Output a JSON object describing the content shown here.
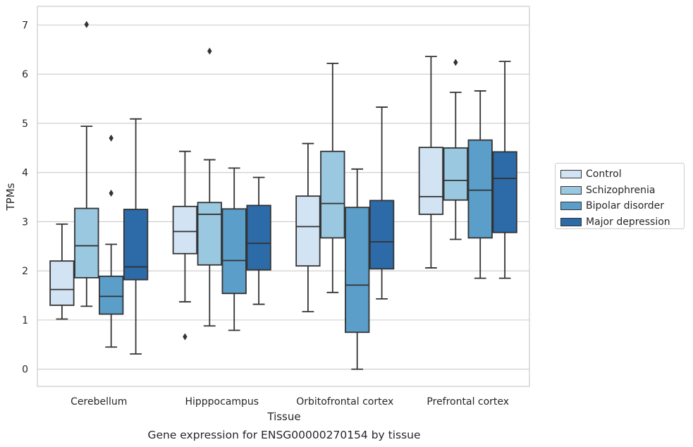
{
  "chart_data": {
    "type": "box",
    "title": "",
    "xlabel": "Tissue",
    "ylabel": "TPMs",
    "caption": "Gene expression for ENSG00000270154 by tissue",
    "ylim": [
      -0.35,
      7.38
    ],
    "yticks": [
      0,
      1,
      2,
      3,
      4,
      5,
      6,
      7
    ],
    "grid": "horizontal",
    "legend_position": "right",
    "categories": [
      "Cerebellum",
      "Hipppocampus",
      "Orbitofrontal cortex",
      "Prefrontal cortex"
    ],
    "series": [
      {
        "name": "Control",
        "color": "#d2e3f3",
        "boxes": [
          {
            "whislo": 1.02,
            "q1": 1.3,
            "median": 1.62,
            "q3": 2.2,
            "whishi": 2.95,
            "fliers": []
          },
          {
            "whislo": 1.37,
            "q1": 2.35,
            "median": 2.8,
            "q3": 3.31,
            "whishi": 4.43,
            "fliers": [
              0.66
            ]
          },
          {
            "whislo": 1.17,
            "q1": 2.1,
            "median": 2.9,
            "q3": 3.52,
            "whishi": 4.59,
            "fliers": []
          },
          {
            "whislo": 2.06,
            "q1": 3.15,
            "median": 3.51,
            "q3": 4.51,
            "whishi": 6.36,
            "fliers": []
          }
        ]
      },
      {
        "name": "Schizophrenia",
        "color": "#9ac8e0",
        "boxes": [
          {
            "whislo": 1.28,
            "q1": 1.86,
            "median": 2.51,
            "q3": 3.27,
            "whishi": 4.94,
            "fliers": [
              7.01
            ]
          },
          {
            "whislo": 0.88,
            "q1": 2.12,
            "median": 3.15,
            "q3": 3.39,
            "whishi": 4.26,
            "fliers": [
              6.47
            ]
          },
          {
            "whislo": 1.56,
            "q1": 2.67,
            "median": 3.37,
            "q3": 4.43,
            "whishi": 6.22,
            "fliers": []
          },
          {
            "whislo": 2.64,
            "q1": 3.44,
            "median": 3.84,
            "q3": 4.5,
            "whishi": 5.63,
            "fliers": [
              6.24
            ]
          }
        ]
      },
      {
        "name": "Bipolar disorder",
        "color": "#5a9ec9",
        "boxes": [
          {
            "whislo": 0.45,
            "q1": 1.12,
            "median": 1.48,
            "q3": 1.89,
            "whishi": 2.54,
            "fliers": [
              3.58,
              4.7
            ]
          },
          {
            "whislo": 0.79,
            "q1": 1.54,
            "median": 2.21,
            "q3": 3.26,
            "whishi": 4.09,
            "fliers": []
          },
          {
            "whislo": 0.0,
            "q1": 0.75,
            "median": 1.71,
            "q3": 3.29,
            "whishi": 4.07,
            "fliers": []
          },
          {
            "whislo": 1.85,
            "q1": 2.67,
            "median": 3.64,
            "q3": 4.66,
            "whishi": 5.66,
            "fliers": []
          }
        ]
      },
      {
        "name": "Major depression",
        "color": "#2c6aa8",
        "boxes": [
          {
            "whislo": 0.31,
            "q1": 1.82,
            "median": 2.08,
            "q3": 3.25,
            "whishi": 5.09,
            "fliers": []
          },
          {
            "whislo": 1.32,
            "q1": 2.02,
            "median": 2.56,
            "q3": 3.33,
            "whishi": 3.9,
            "fliers": []
          },
          {
            "whislo": 1.43,
            "q1": 2.04,
            "median": 2.59,
            "q3": 3.43,
            "whishi": 5.33,
            "fliers": []
          },
          {
            "whislo": 1.85,
            "q1": 2.78,
            "median": 3.88,
            "q3": 4.42,
            "whishi": 6.26,
            "fliers": []
          }
        ]
      }
    ]
  }
}
